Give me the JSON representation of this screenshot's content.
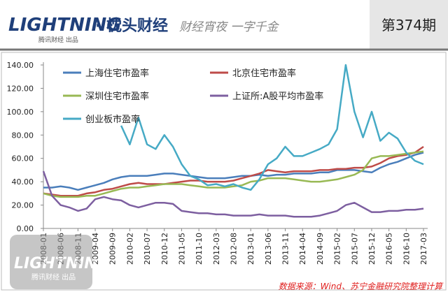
{
  "header": {
    "logo": "LIGHTNING",
    "logo_sub": "腾讯财经 出品",
    "brand": "· 枕头财经",
    "slogan": "财经宵夜 一字千金",
    "issue": "第374期"
  },
  "chart_data": {
    "type": "line",
    "categories": [
      "2008-01",
      null,
      "2008-06",
      null,
      "2008-11",
      null,
      "2009-04",
      null,
      "2009-09",
      null,
      "2010-02",
      null,
      "2010-07",
      null,
      "2010-12",
      null,
      "2011-05",
      null,
      "2011-10",
      null,
      "2012-03",
      null,
      "2012-08",
      null,
      "2013-01",
      null,
      "2013-06",
      null,
      "2013-11",
      null,
      "2014-04",
      null,
      "2014-09",
      null,
      "2015-02",
      null,
      "2015-07",
      null,
      "2015-12",
      null,
      "2016-05",
      null,
      "2016-10",
      null,
      "2017-03"
    ],
    "series": [
      {
        "name": "上海住宅市盈率",
        "color": "#4a7ebb",
        "values": [
          35,
          35,
          36,
          35,
          33,
          35,
          37,
          39,
          42,
          44,
          45,
          45,
          45,
          46,
          47,
          47,
          46,
          45,
          44,
          43,
          43,
          43,
          44,
          45,
          45,
          46,
          45,
          46,
          46,
          47,
          47,
          47,
          48,
          48,
          50,
          50,
          50,
          49,
          48,
          52,
          55,
          57,
          60,
          63,
          65
        ]
      },
      {
        "name": "北京住宅市盈率",
        "color": "#be4b48",
        "values": [
          30,
          29,
          28,
          28,
          28,
          30,
          31,
          33,
          34,
          36,
          38,
          39,
          38,
          38,
          38,
          39,
          40,
          41,
          41,
          40,
          40,
          40,
          41,
          43,
          45,
          47,
          50,
          49,
          48,
          49,
          49,
          49,
          50,
          50,
          51,
          51,
          52,
          52,
          53,
          56,
          60,
          62,
          63,
          65,
          70
        ]
      },
      {
        "name": "深圳住宅市盈率",
        "color": "#98b954",
        "values": [
          30,
          28,
          27,
          27,
          27,
          28,
          28,
          30,
          32,
          34,
          35,
          35,
          36,
          37,
          38,
          38,
          38,
          37,
          36,
          35,
          35,
          35,
          36,
          37,
          40,
          41,
          43,
          43,
          43,
          42,
          41,
          40,
          40,
          41,
          42,
          44,
          46,
          50,
          60,
          62,
          62,
          63,
          64,
          65,
          66
        ]
      },
      {
        "name": "上证所:A股平均市盈率",
        "color": "#7d5fa0",
        "values": [
          49,
          28,
          20,
          18,
          15,
          17,
          25,
          27,
          25,
          24,
          20,
          18,
          20,
          22,
          22,
          21,
          15,
          14,
          13,
          13,
          12,
          12,
          11,
          11,
          11,
          12,
          11,
          11,
          11,
          10,
          10,
          10,
          11,
          13,
          15,
          20,
          22,
          18,
          14,
          14,
          15,
          15,
          16,
          16,
          17
        ]
      },
      {
        "name": "创业板市盈率",
        "color": "#46aac5",
        "values": [
          null,
          null,
          null,
          null,
          null,
          null,
          null,
          null,
          null,
          88,
          72,
          95,
          72,
          68,
          80,
          70,
          55,
          45,
          42,
          37,
          38,
          36,
          38,
          35,
          33,
          42,
          55,
          60,
          70,
          62,
          62,
          65,
          68,
          72,
          85,
          140,
          100,
          78,
          100,
          75,
          82,
          77,
          65,
          58,
          55
        ]
      }
    ],
    "ylim": [
      0,
      140
    ],
    "yticks": [
      {
        "value": 0,
        "label": "0.00"
      },
      {
        "value": 20,
        "label": "20.00"
      },
      {
        "value": 40,
        "label": "40.00"
      },
      {
        "value": 60,
        "label": "60.00"
      },
      {
        "value": 80,
        "label": "80.00"
      },
      {
        "value": 100,
        "label": "100.00"
      },
      {
        "value": 120,
        "label": "120.00"
      },
      {
        "value": 140,
        "label": "140.00"
      }
    ],
    "grid": false
  },
  "footer": {
    "source": "数据来源：Wind、苏宁金融研究院整理计算"
  },
  "watermark": {
    "logo": "LIGHTNING",
    "logo_sub": "腾讯财经 出品"
  }
}
